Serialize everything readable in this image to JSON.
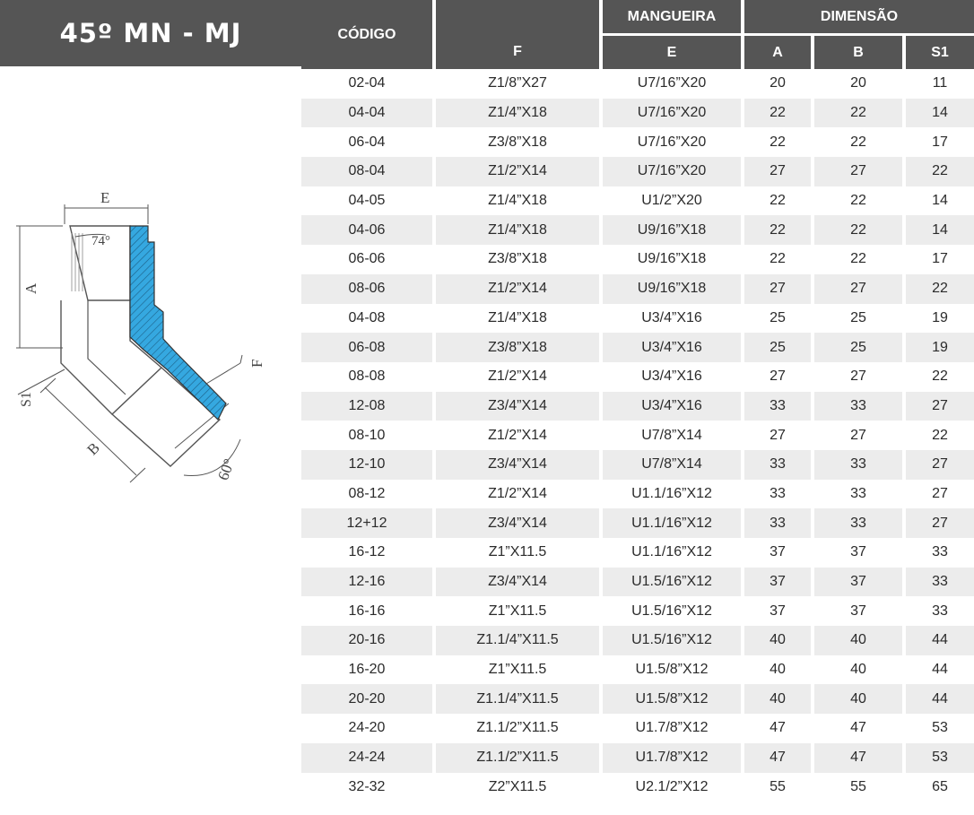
{
  "title": "45º MN - MJ",
  "diagram_labels": {
    "E": "E",
    "angle_top": "74°",
    "A": "A",
    "F": "F",
    "S1": "S1",
    "B": "B",
    "angle_bottom": "60°"
  },
  "colors": {
    "header_bg": "#555555",
    "row_alt": "#ececec",
    "section_fill": "#35a8e0"
  },
  "table": {
    "headers": {
      "codigo": "CÓDIGO",
      "mangueira": "MANGUEIRA",
      "dimensao": "DIMENSÃO",
      "F": "F",
      "E": "E",
      "A": "A",
      "B": "B",
      "S1": "S1"
    },
    "rows": [
      {
        "code": "02-04",
        "F": "Z1/8”X27",
        "E": "U7/16”X20",
        "A": "20",
        "B": "20",
        "S1": "11"
      },
      {
        "code": "04-04",
        "F": "Z1/4”X18",
        "E": "U7/16”X20",
        "A": "22",
        "B": "22",
        "S1": "14"
      },
      {
        "code": "06-04",
        "F": "Z3/8”X18",
        "E": "U7/16”X20",
        "A": "22",
        "B": "22",
        "S1": "17"
      },
      {
        "code": "08-04",
        "F": "Z1/2”X14",
        "E": "U7/16”X20",
        "A": "27",
        "B": "27",
        "S1": "22"
      },
      {
        "code": "04-05",
        "F": "Z1/4”X18",
        "E": "U1/2”X20",
        "A": "22",
        "B": "22",
        "S1": "14"
      },
      {
        "code": "04-06",
        "F": "Z1/4”X18",
        "E": "U9/16”X18",
        "A": "22",
        "B": "22",
        "S1": "14"
      },
      {
        "code": "06-06",
        "F": "Z3/8”X18",
        "E": "U9/16”X18",
        "A": "22",
        "B": "22",
        "S1": "17"
      },
      {
        "code": "08-06",
        "F": "Z1/2”X14",
        "E": "U9/16”X18",
        "A": "27",
        "B": "27",
        "S1": "22"
      },
      {
        "code": "04-08",
        "F": "Z1/4”X18",
        "E": "U3/4”X16",
        "A": "25",
        "B": "25",
        "S1": "19"
      },
      {
        "code": "06-08",
        "F": "Z3/8”X18",
        "E": "U3/4”X16",
        "A": "25",
        "B": "25",
        "S1": "19"
      },
      {
        "code": "08-08",
        "F": "Z1/2”X14",
        "E": "U3/4”X16",
        "A": "27",
        "B": "27",
        "S1": "22"
      },
      {
        "code": "12-08",
        "F": "Z3/4”X14",
        "E": "U3/4”X16",
        "A": "33",
        "B": "33",
        "S1": "27"
      },
      {
        "code": "08-10",
        "F": "Z1/2”X14",
        "E": "U7/8”X14",
        "A": "27",
        "B": "27",
        "S1": "22"
      },
      {
        "code": "12-10",
        "F": "Z3/4”X14",
        "E": "U7/8”X14",
        "A": "33",
        "B": "33",
        "S1": "27"
      },
      {
        "code": "08-12",
        "F": "Z1/2”X14",
        "E": "U1.1/16”X12",
        "A": "33",
        "B": "33",
        "S1": "27"
      },
      {
        "code": "12+12",
        "F": "Z3/4”X14",
        "E": "U1.1/16”X12",
        "A": "33",
        "B": "33",
        "S1": "27"
      },
      {
        "code": "16-12",
        "F": "Z1”X11.5",
        "E": "U1.1/16”X12",
        "A": "37",
        "B": "37",
        "S1": "33"
      },
      {
        "code": "12-16",
        "F": "Z3/4”X14",
        "E": "U1.5/16”X12",
        "A": "37",
        "B": "37",
        "S1": "33"
      },
      {
        "code": "16-16",
        "F": "Z1”X11.5",
        "E": "U1.5/16”X12",
        "A": "37",
        "B": "37",
        "S1": "33"
      },
      {
        "code": "20-16",
        "F": "Z1.1/4”X11.5",
        "E": "U1.5/16”X12",
        "A": "40",
        "B": "40",
        "S1": "44"
      },
      {
        "code": "16-20",
        "F": "Z1”X11.5",
        "E": "U1.5/8”X12",
        "A": "40",
        "B": "40",
        "S1": "44"
      },
      {
        "code": "20-20",
        "F": "Z1.1/4”X11.5",
        "E": "U1.5/8”X12",
        "A": "40",
        "B": "40",
        "S1": "44"
      },
      {
        "code": "24-20",
        "F": "Z1.1/2”X11.5",
        "E": "U1.7/8”X12",
        "A": "47",
        "B": "47",
        "S1": "53"
      },
      {
        "code": "24-24",
        "F": "Z1.1/2”X11.5",
        "E": "U1.7/8”X12",
        "A": "47",
        "B": "47",
        "S1": "53"
      },
      {
        "code": "32-32",
        "F": "Z2”X11.5",
        "E": "U2.1/2”X12",
        "A": "55",
        "B": "55",
        "S1": "65"
      }
    ]
  }
}
